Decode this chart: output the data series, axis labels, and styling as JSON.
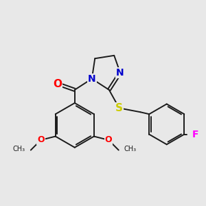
{
  "background_color": "#e8e8e8",
  "bond_color": "#1a1a1a",
  "atom_colors": {
    "O": "#ff0000",
    "N": "#0000cc",
    "S": "#cccc00",
    "F": "#ff00ff",
    "C": "#1a1a1a"
  },
  "bond_width": 1.4,
  "font_size_atoms": 10
}
